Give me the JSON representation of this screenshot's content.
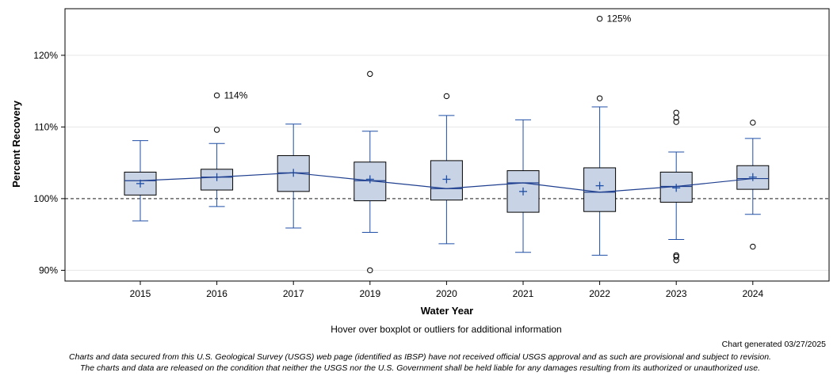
{
  "chart_data": {
    "type": "boxplot",
    "title": "",
    "xlabel": "Water Year",
    "ylabel": "Percent Recovery",
    "ylim": [
      88.5,
      126.5
    ],
    "yticks": [
      90,
      100,
      110,
      120
    ],
    "ytick_labels": [
      "90%",
      "100%",
      "110%",
      "120%"
    ],
    "reference_line": 100,
    "grid": true,
    "categories": [
      "2015",
      "2016",
      "2017",
      "2019",
      "2020",
      "2021",
      "2022",
      "2023",
      "2024"
    ],
    "boxes": [
      {
        "year": "2015",
        "whisker_low": 96.9,
        "q1": 100.5,
        "median": 102.5,
        "q3": 103.7,
        "whisker_high": 108.1,
        "mean": 102.1,
        "outliers": []
      },
      {
        "year": "2016",
        "whisker_low": 98.9,
        "q1": 101.2,
        "median": 103.0,
        "q3": 104.1,
        "whisker_high": 107.7,
        "mean": 103.0,
        "outliers": [
          109.6,
          114.4
        ]
      },
      {
        "year": "2017",
        "whisker_low": 95.9,
        "q1": 101.0,
        "median": 103.6,
        "q3": 106.0,
        "whisker_high": 110.4,
        "mean": 103.6,
        "outliers": []
      },
      {
        "year": "2019",
        "whisker_low": 95.3,
        "q1": 99.7,
        "median": 102.5,
        "q3": 105.1,
        "whisker_high": 109.4,
        "mean": 102.7,
        "outliers": [
          90.0,
          117.4
        ]
      },
      {
        "year": "2020",
        "whisker_low": 93.7,
        "q1": 99.8,
        "median": 101.4,
        "q3": 105.3,
        "whisker_high": 111.6,
        "mean": 102.7,
        "outliers": [
          114.3
        ]
      },
      {
        "year": "2021",
        "whisker_low": 92.5,
        "q1": 98.1,
        "median": 102.2,
        "q3": 103.9,
        "whisker_high": 111.0,
        "mean": 101.0,
        "outliers": []
      },
      {
        "year": "2022",
        "whisker_low": 92.1,
        "q1": 98.2,
        "median": 100.9,
        "q3": 104.3,
        "whisker_high": 112.8,
        "mean": 101.8,
        "outliers": [
          114.0,
          125.1
        ]
      },
      {
        "year": "2023",
        "whisker_low": 94.3,
        "q1": 99.5,
        "median": 101.7,
        "q3": 103.7,
        "whisker_high": 106.5,
        "mean": 101.5,
        "outliers": [
          91.4,
          91.9,
          92.1,
          110.7,
          111.3,
          112.0
        ]
      },
      {
        "year": "2024",
        "whisker_low": 97.8,
        "q1": 101.3,
        "median": 102.8,
        "q3": 104.6,
        "whisker_high": 108.4,
        "mean": 103.0,
        "outliers": [
          93.3,
          110.6
        ]
      }
    ],
    "annotations": [
      {
        "year": "2016",
        "value": 114.4,
        "label": "114%"
      },
      {
        "year": "2022",
        "value": 125.1,
        "label": "125%"
      }
    ],
    "colors": {
      "box_fill": "#c8d3e5",
      "box_stroke": "#000000",
      "whisker": "#1f4fa6",
      "median_line": "#1f3f8f",
      "mean_marker": "#1f4fa6",
      "reference_line": "#666666",
      "grid": "#e6e6e6",
      "outlier": "#000000"
    }
  },
  "hover_note": "Hover over boxplot or outliers for additional information",
  "generated_text": "Chart generated 03/27/2025",
  "disclaimer": {
    "line1": "Charts and data secured from this U.S. Geological Survey (USGS) web page (identified as IBSP) have not received official USGS approval and as such are provisional and subject to revision.",
    "line2": "The charts and data are released on the condition that neither the USGS nor the U.S. Government shall be held liable for any damages resulting from its authorized or unauthorized use."
  }
}
